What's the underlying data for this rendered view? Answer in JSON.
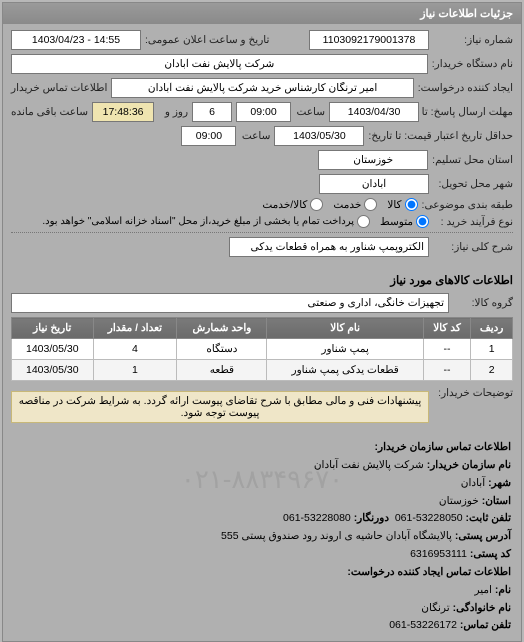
{
  "header": {
    "title": "جزئیات اطلاعات نیاز"
  },
  "form": {
    "req_no_label": "شماره نیاز:",
    "req_no": "1103092179001378",
    "pub_datetime_label": "تاریخ و ساعت اعلان عمومی:",
    "pub_datetime": "14:55 - 1403/04/23",
    "org_name_label": "نام دستگاه خریدار:",
    "org_name": "شرکت پالایش نفت آبادان",
    "creator_label": "ایجاد کننده درخواست:",
    "creator": "امیر ترنگان کارشناس خرید شرکت پالایش نفت آبادان",
    "contact_label": "اطلاعات تماس خریدار",
    "reply_until_label": "مهلت ارسال پاسخ: تا تاریخ:",
    "reply_date": "1403/04/30",
    "reply_time": "09:00",
    "remain_label_days": "روز و",
    "remain_days": "6",
    "remain_time": "17:48:36",
    "remain_label_left": "ساعت باقی مانده",
    "valid_until_label": "حداقل تاریخ اعتبار قیمت: تا تاریخ:",
    "valid_date": "1403/05/30",
    "valid_time": "09:00",
    "time_label": "ساعت",
    "province_label": "استان محل تسلیم:",
    "province": "خوزستان",
    "city_label": "شهر محل تحویل:",
    "city": "آبادان",
    "class_label": "طبقه بندی موضوعی:",
    "class_opts": {
      "a": "کالا",
      "b": "خدمت",
      "c": "کالا/خدمت"
    },
    "proc_label": "نوع فرآیند خرید :",
    "proc_opts": {
      "a": "متوسط",
      "b": "پرداخت تمام یا بخشی از مبلغ خرید،از محل \"اسناد خزانه اسلامی\" خواهد بود."
    },
    "subject_label": "شرح کلی نیاز:",
    "subject": "الکتروپمپ شناور به همراه قطعات یدکی"
  },
  "items": {
    "heading": "اطلاعات کالاهای مورد نیاز",
    "group_label": "گروه کالا:",
    "group_value": "تجهیزات خانگی، اداری و صنعتی",
    "columns": [
      "ردیف",
      "کد کالا",
      "نام کالا",
      "واحد شمارش",
      "تعداد / مقدار",
      "تاریخ نیاز"
    ],
    "rows": [
      [
        "1",
        "--",
        "پمپ شناور",
        "دستگاه",
        "4",
        "1403/05/30"
      ],
      [
        "2",
        "--",
        "قطعات یدکی پمپ شناور",
        "قطعه",
        "1",
        "1403/05/30"
      ]
    ]
  },
  "buyer_notes": {
    "label": "توضیحات خریدار:",
    "text": "پیشنهادات فنی و مالی مطابق با شرح تقاضای پیوست ارائه گردد. به شرایط شرکت در مناقصه پیوست توجه شود."
  },
  "watermark": "۰۲۱-۸۸۳۴۹۶۷۰",
  "contact": {
    "heading": "اطلاعات تماس سازمان خریدار:",
    "org_label": "نام سازمان خریدار:",
    "org": "شرکت پالایش نفت آبادان",
    "city_label": "شهر:",
    "city": "آبادان",
    "province_label": "استان:",
    "province": "خوزستان",
    "phone_label": "تلفن ثابت:",
    "phone": "53228050-061",
    "fax_label": "دورنگار:",
    "fax": "53228080-061",
    "postal_label": "آدرس پستی:",
    "postal": "پالایشگاه آبادان حاشیه ی اروند رود صندوق پستی 555",
    "zip_label": "کد پستی:",
    "zip": "6316953111",
    "req_heading": "اطلاعات تماس ایجاد کننده درخواست:",
    "first_label": "نام:",
    "first": "امیر",
    "last_label": "نام خانوادگی:",
    "last": "ترنگان",
    "rphone_label": "تلفن تماس:",
    "rphone": "53226172-061"
  }
}
